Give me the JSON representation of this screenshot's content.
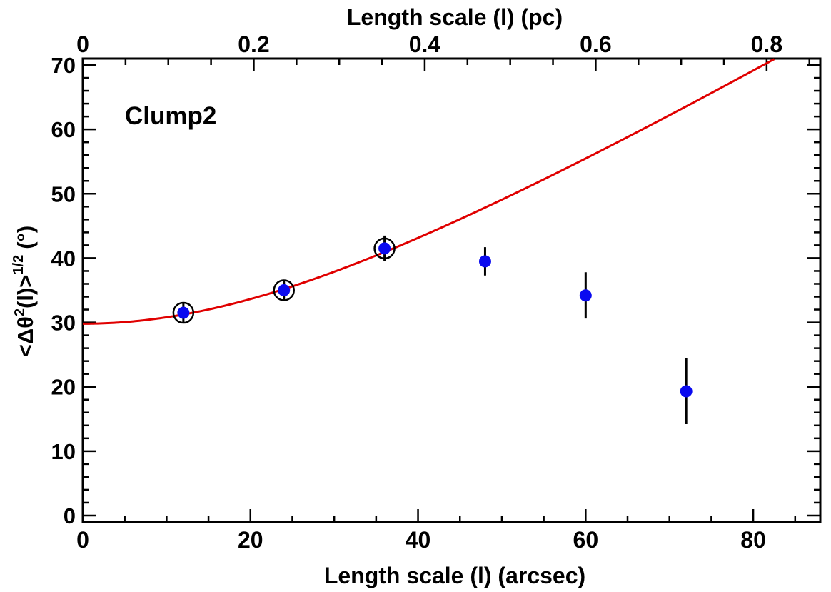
{
  "chart_data": {
    "type": "scatter",
    "label": "Clump2",
    "xlabel": "Length scale (l) (arcsec)",
    "x2label": "Length scale (l) (pc)",
    "ylabel_main": "<Δθ",
    "ylabel_sup1": "2",
    "ylabel_mid": "(l)>",
    "ylabel_sup2": "1/2",
    "ylabel_unit": "(°)",
    "xlim": [
      0,
      88
    ],
    "ylim": [
      -1,
      71
    ],
    "x_ticks": [
      0,
      20,
      40,
      60,
      80
    ],
    "x_tick_labels": [
      "0",
      "20",
      "40",
      "60",
      "80"
    ],
    "y_ticks": [
      0,
      10,
      20,
      30,
      40,
      50,
      60,
      70
    ],
    "y_tick_labels": [
      "0",
      "10",
      "20",
      "30",
      "40",
      "50",
      "60",
      "70"
    ],
    "x2_ticks_arcsec": [
      0,
      20.4,
      40.8,
      61.2,
      81.6
    ],
    "x2_tick_labels": [
      "0",
      "0.2",
      "0.4",
      "0.6",
      "0.8"
    ],
    "points": [
      {
        "x": 12,
        "y": 31.5,
        "err": 1.6,
        "fit": true
      },
      {
        "x": 24,
        "y": 35.0,
        "err": 1.6,
        "fit": true
      },
      {
        "x": 36,
        "y": 41.5,
        "err": 2.0,
        "fit": true
      },
      {
        "x": 48,
        "y": 39.5,
        "err": 2.2,
        "fit": false
      },
      {
        "x": 60,
        "y": 34.2,
        "err": 3.6,
        "fit": false
      },
      {
        "x": 72,
        "y": 19.3,
        "err": 5.1,
        "fit": false
      }
    ],
    "fit_curve": {
      "b": 29.8,
      "m": 0.78,
      "x_max": 88
    },
    "colors": {
      "points": "#0a0af0",
      "fit": "#e00000",
      "axes": "#000000",
      "fit_marker": "#000000"
    }
  }
}
